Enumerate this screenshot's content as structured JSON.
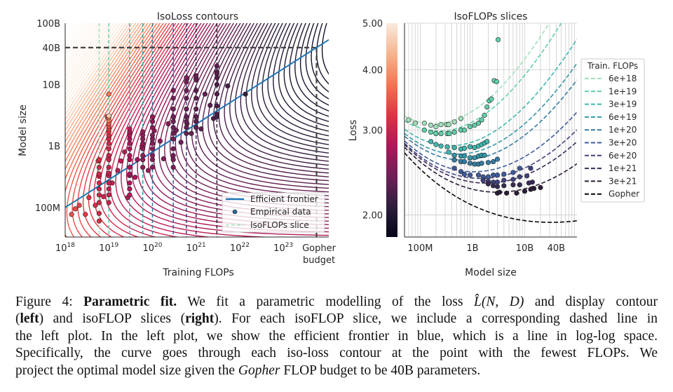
{
  "chart_data": [
    {
      "type": "contour",
      "title": "IsoLoss contours",
      "xlabel": "Training FLOPs",
      "ylabel": "Model size",
      "xscale": "log",
      "yscale": "log",
      "xlim": [
        1e+18,
        1.1e+24
      ],
      "ylim": [
        33000000.0,
        100000000000.0
      ],
      "x_ticks": [
        {
          "base": "10",
          "exp": "18",
          "value": 1e+18
        },
        {
          "base": "10",
          "exp": "19",
          "value": 1e+19
        },
        {
          "base": "10",
          "exp": "20",
          "value": 1e+20
        },
        {
          "base": "10",
          "exp": "21",
          "value": 1e+21
        },
        {
          "base": "10",
          "exp": "22",
          "value": 1e+22
        },
        {
          "base": "10",
          "exp": "23",
          "value": 1e+23
        }
      ],
      "gopher_tick": {
        "line1": "Gopher",
        "line2": "budget",
        "value": 5.76e+23
      },
      "y_ticks": [
        {
          "label": "100B",
          "value": 100000000000.0
        },
        {
          "label": "40B",
          "value": 40000000000.0
        },
        {
          "label": "10B",
          "value": 10000000000.0
        },
        {
          "label": "1B",
          "value": 1000000000.0
        },
        {
          "label": "100M",
          "value": 100000000.0
        }
      ],
      "frontier": {
        "color": "#1f77b4",
        "points": [
          [
            1e+18,
            100000000.0
          ],
          [
            5.76e+23,
            40000000000.0
          ]
        ]
      },
      "gopher_projection": {
        "flops": 5.76e+23,
        "params": 40000000000.0,
        "color": "#444444"
      },
      "legend": {
        "placement": "lower-right",
        "entries": [
          "Efficient frontier",
          "Empirical data",
          "IsoFLOPs slice"
        ]
      },
      "extra_points": [
        [
          1.4e+18,
          77000000.0
        ],
        [
          1.7e+18,
          95000000.0
        ],
        [
          2.1e+18,
          108000000.0
        ],
        [
          2.9e+18,
          77000000.0
        ],
        [
          3.5e+18,
          145000000.0
        ],
        [
          4.9e+18,
          108000000.0
        ],
        [
          5.7e+18,
          570000000.0
        ],
        [
          7.6e+18,
          150000000.0
        ],
        [
          1.9e+19,
          570000000.0
        ],
        [
          2.7e+19,
          145000000.0
        ],
        [
          3e+19,
          1600000000.0
        ],
        [
          4e+19,
          310000000.0
        ],
        [
          5.8e+19,
          1000000000.0
        ],
        [
          1.1e+20,
          1770000000.0
        ],
        [
          1.8e+20,
          620000000.0
        ],
        [
          2.3e+20,
          2300000000.0
        ],
        [
          4.5e+20,
          1150000000.0
        ],
        [
          6.2e+20,
          2300000000.0
        ],
        [
          7.8e+20,
          1600000000.0
        ],
        [
          1.3e+21,
          1900000000.0
        ],
        [
          1.6e+21,
          7000000000.0
        ],
        [
          2.1e+21,
          4600000000.0
        ],
        [
          2.5e+21,
          2800000000.0
        ],
        [
          5.3e+21,
          9500000000.0
        ],
        [
          1.35e+22,
          7000000000.0
        ],
        [
          1e+21,
          12600000000.0
        ],
        [
          6.2e+20,
          12600000000.0
        ],
        [
          3e+21,
          16000000000.0
        ],
        [
          1e+19,
          7000000000.0
        ],
        [
          9.2e+18,
          3000000000.0
        ],
        [
          2.3e+19,
          800000000.0
        ],
        [
          4.5e+19,
          600000000.0
        ],
        [
          8e+19,
          400000000.0
        ],
        [
          1.5e+20,
          1200000000.0
        ],
        [
          3.5e+20,
          1800000000.0
        ],
        [
          1.2e+19,
          250000000.0
        ],
        [
          1.6e+19,
          400000000.0
        ]
      ]
    },
    {
      "type": "line",
      "title": "IsoFLOPs slices",
      "xlabel": "Model size",
      "ylabel": "Loss",
      "xscale": "log",
      "yscale": "log",
      "xlim": [
        50000000.0,
        100000000000.0
      ],
      "ylim": [
        1.8,
        5.0
      ],
      "grid": true,
      "x_ticks": [
        {
          "label": "100M",
          "value": 100000000.0
        },
        {
          "label": "1B",
          "value": 1000000000.0
        },
        {
          "label": "10B",
          "value": 10000000000.0
        },
        {
          "label": "40B",
          "value": 40000000000.0
        }
      ],
      "y_ticks": [
        {
          "label": "5.00",
          "value": 5.0
        },
        {
          "label": "4.00",
          "value": 4.0
        },
        {
          "label": "3.00",
          "value": 3.0
        },
        {
          "label": "2.00",
          "value": 2.0
        }
      ],
      "colorbar": {
        "range": [
          1.8,
          5.0
        ],
        "colormap": "rocket",
        "stops": [
          "#03051a",
          "#2e1e3c",
          "#701f57",
          "#ae1759",
          "#e13342",
          "#f37651",
          "#f6b48f",
          "#faebdd"
        ]
      },
      "legend": {
        "title": "Train. FLOPs",
        "placement": "outside-right"
      },
      "series": [
        {
          "name": "6e+18",
          "flops": 6e+18,
          "color": "#a0dfb9",
          "points": [
            [
              60000000.0,
              3.15
            ],
            [
              80000000.0,
              3.1
            ],
            [
              120000000.0,
              3.1
            ],
            [
              160000000.0,
              3.07
            ],
            [
              200000000.0,
              3.05
            ],
            [
              250000000.0,
              3.08
            ],
            [
              320000000.0,
              3.08
            ],
            [
              350000000.0,
              3.08
            ],
            [
              450000000.0,
              3.12
            ],
            [
              600000000.0,
              3.17
            ]
          ]
        },
        {
          "name": "1e+19",
          "flops": 1e+19,
          "color": "#60cea9",
          "points": [
            [
              120000000.0,
              3.0
            ],
            [
              160000000.0,
              2.97
            ],
            [
              200000000.0,
              2.95
            ],
            [
              250000000.0,
              2.95
            ],
            [
              330000000.0,
              2.95
            ],
            [
              360000000.0,
              2.95
            ],
            [
              450000000.0,
              2.97
            ],
            [
              600000000.0,
              3.0
            ],
            [
              700000000.0,
              3.0
            ],
            [
              900000000.0,
              3.05
            ],
            [
              1100000000.0,
              3.07
            ],
            [
              1300000000.0,
              3.1
            ],
            [
              1500000000.0,
              3.15
            ],
            [
              1700000000.0,
              3.22
            ],
            [
              1900000000.0,
              3.35
            ],
            [
              2100000000.0,
              3.45
            ],
            [
              2300000000.0,
              3.48
            ],
            [
              2600000000.0,
              3.8
            ],
            [
              2900000000.0,
              3.78
            ],
            [
              3100000000.0,
              4.62
            ]
          ]
        },
        {
          "name": "3e+19",
          "flops": 3e+19,
          "color": "#40b7ad",
          "points": [
            [
              160000000.0,
              2.84
            ],
            [
              200000000.0,
              2.8
            ],
            [
              250000000.0,
              2.78
            ],
            [
              330000000.0,
              2.77
            ],
            [
              350000000.0,
              2.7
            ],
            [
              450000000.0,
              2.76
            ],
            [
              600000000.0,
              2.74
            ],
            [
              700000000.0,
              2.75
            ],
            [
              900000000.0,
              2.77
            ],
            [
              1100000000.0,
              2.76
            ],
            [
              1300000000.0,
              2.78
            ],
            [
              1500000000.0,
              2.8
            ],
            [
              1700000000.0,
              2.82
            ],
            [
              1900000000.0,
              2.84
            ]
          ]
        },
        {
          "name": "6e+19",
          "flops": 6e+19,
          "color": "#3497a9",
          "points": [
            [
              450000000.0,
              2.66
            ],
            [
              600000000.0,
              2.65
            ],
            [
              700000000.0,
              2.65
            ],
            [
              900000000.0,
              2.63
            ],
            [
              1100000000.0,
              2.63
            ],
            [
              1300000000.0,
              2.65
            ],
            [
              1500000000.0,
              2.66
            ],
            [
              1700000000.0,
              2.66
            ]
          ]
        },
        {
          "name": "1e+20",
          "flops": 1e+20,
          "color": "#357ba2",
          "points": [
            [
              450000000.0,
              2.6
            ],
            [
              600000000.0,
              2.58
            ],
            [
              700000000.0,
              2.58
            ],
            [
              900000000.0,
              2.56
            ],
            [
              1100000000.0,
              2.55
            ],
            [
              1300000000.0,
              2.55
            ],
            [
              1500000000.0,
              2.56
            ],
            [
              2000000000.0,
              2.57
            ],
            [
              2500000000.0,
              2.58
            ],
            [
              3000000000.0,
              2.61
            ]
          ]
        },
        {
          "name": "3e+20",
          "flops": 3e+20,
          "color": "#3e5a9c",
          "points": [
            [
              450000000.0,
              2.5
            ],
            [
              600000000.0,
              2.46
            ],
            [
              700000000.0,
              2.43
            ],
            [
              900000000.0,
              2.42
            ],
            [
              1300000000.0,
              2.42
            ],
            [
              1600000000.0,
              2.4
            ],
            [
              2000000000.0,
              2.4
            ],
            [
              2500000000.0,
              2.42
            ],
            [
              3000000000.0,
              2.42
            ],
            [
              4000000000.0,
              2.43
            ],
            [
              6000000000.0,
              2.45
            ],
            [
              8000000000.0,
              2.5
            ]
          ]
        },
        {
          "name": "6e+20",
          "flops": 6e+20,
          "color": "#40407e",
          "points": [
            [
              1600000000.0,
              2.36
            ],
            [
              2000000000.0,
              2.35
            ],
            [
              2500000000.0,
              2.34
            ],
            [
              3000000000.0,
              2.34
            ],
            [
              4000000000.0,
              2.36
            ],
            [
              6000000000.0,
              2.37
            ],
            [
              8000000000.0,
              2.4
            ],
            [
              11000000000.0,
              2.41
            ],
            [
              13000000000.0,
              2.5
            ]
          ]
        },
        {
          "name": "1e+21",
          "flops": 1e+21,
          "color": "#382a54",
          "points": [
            [
              2000000000.0,
              2.32
            ],
            [
              2500000000.0,
              2.3
            ],
            [
              3000000000.0,
              2.29
            ],
            [
              4000000000.0,
              2.3
            ],
            [
              6000000000.0,
              2.31
            ],
            [
              8000000000.0,
              2.31
            ],
            [
              12000000000.0,
              2.33
            ],
            [
              14000000000.0,
              2.34
            ]
          ]
        },
        {
          "name": "3e+21",
          "flops": 3e+21,
          "color": "#2b1c35",
          "points": [
            [
              3000000000.0,
              2.22
            ],
            [
              3300000000.0,
              2.23
            ],
            [
              4500000000.0,
              2.22
            ],
            [
              7000000000.0,
              2.22
            ],
            [
              10000000000.0,
              2.24
            ],
            [
              13000000000.0,
              2.26
            ],
            [
              15000000000.0,
              2.27
            ],
            [
              20000000000.0,
              2.28
            ]
          ]
        },
        {
          "name": "Gopher",
          "flops": 5.76e+23,
          "color": "#0b0405",
          "points": []
        }
      ]
    }
  ],
  "caption": {
    "label": "Figure 4:",
    "title": "Parametric fit.",
    "l1a": " We fit a parametric modelling of the loss ",
    "math": "L̂(N, D)",
    "l1b": " and display contour",
    "l2a": "(",
    "left": "left",
    "l2b": ") and isoFLOP slices (",
    "right": "right",
    "l2c": "). For each isoFLOP slice, we include a corresponding dashed line in",
    "l3": "the left plot. In the left plot, we show the efficient frontier in blue, which is a line in log-log space.",
    "l4": "Specifically, the curve goes through each iso-loss contour at the point with the fewest FLOPs. We",
    "l5a": "project the optimal model size given the ",
    "gopher": "Gopher",
    "l5b": " FLOP budget to be 40B parameters."
  }
}
